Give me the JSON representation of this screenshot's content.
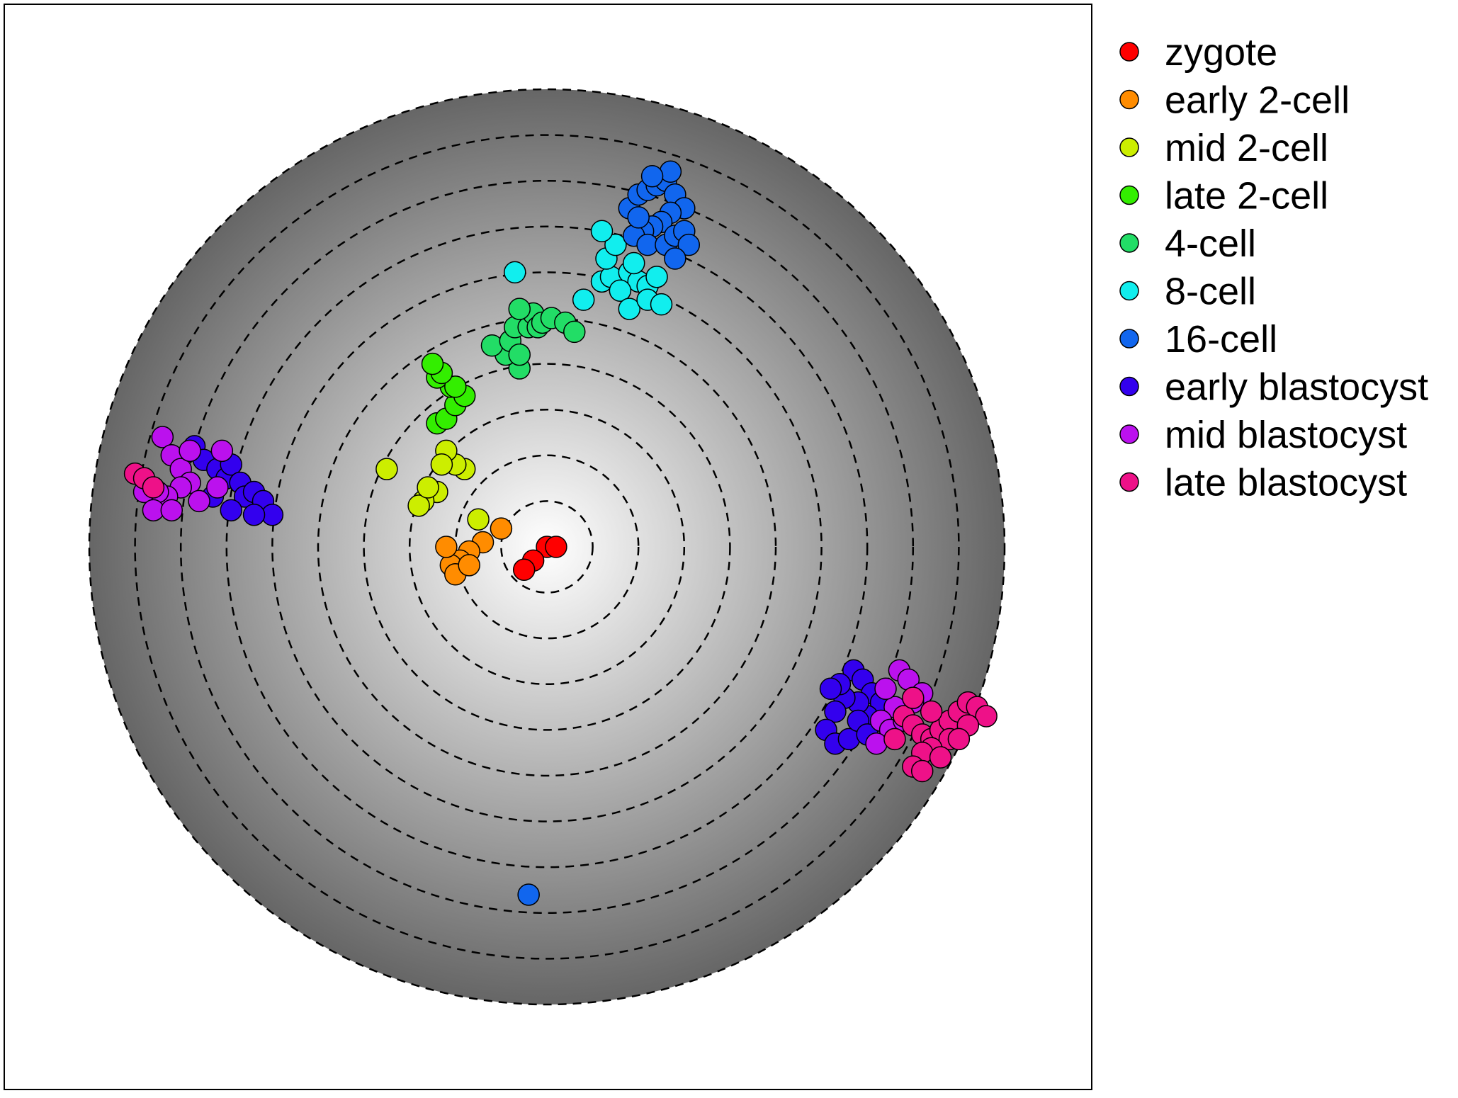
{
  "chart_data": {
    "type": "scatter",
    "title": "",
    "xlabel": "",
    "ylabel": "",
    "xlim": [
      -1,
      1
    ],
    "ylim": [
      -1,
      1
    ],
    "grid": false,
    "background": "radial gradient, white center to dark gray edge, dashed concentric rings",
    "legend_position": "right",
    "series": [
      {
        "name": "zygote",
        "color": "#ff0000",
        "points": [
          [
            0.0,
            0.0
          ],
          [
            -0.03,
            -0.03
          ],
          [
            -0.05,
            -0.05
          ],
          [
            0.02,
            0.0
          ]
        ]
      },
      {
        "name": "early 2-cell",
        "color": "#ff8c00",
        "points": [
          [
            -0.1,
            0.04
          ],
          [
            -0.14,
            0.01
          ],
          [
            -0.17,
            -0.01
          ],
          [
            -0.19,
            -0.03
          ],
          [
            -0.21,
            -0.04
          ],
          [
            -0.2,
            -0.06
          ],
          [
            -0.17,
            -0.04
          ],
          [
            -0.22,
            0.0
          ]
        ]
      },
      {
        "name": "mid 2-cell",
        "color": "#ccee00",
        "points": [
          [
            -0.15,
            0.06
          ],
          [
            -0.18,
            0.17
          ],
          [
            -0.2,
            0.18
          ],
          [
            -0.24,
            0.12
          ],
          [
            -0.27,
            0.1
          ],
          [
            -0.28,
            0.09
          ],
          [
            -0.26,
            0.13
          ],
          [
            -0.22,
            0.21
          ],
          [
            -0.23,
            0.18
          ],
          [
            -0.35,
            0.17
          ]
        ]
      },
      {
        "name": "late 2-cell",
        "color": "#33ee00",
        "points": [
          [
            -0.24,
            0.27
          ],
          [
            -0.22,
            0.28
          ],
          [
            -0.2,
            0.31
          ],
          [
            -0.18,
            0.33
          ],
          [
            -0.21,
            0.35
          ],
          [
            -0.24,
            0.37
          ],
          [
            -0.2,
            0.35
          ],
          [
            -0.23,
            0.38
          ],
          [
            -0.25,
            0.4
          ]
        ]
      },
      {
        "name": "4-cell",
        "color": "#22dd66",
        "points": [
          [
            -0.06,
            0.39
          ],
          [
            -0.09,
            0.42
          ],
          [
            -0.12,
            0.44
          ],
          [
            -0.08,
            0.45
          ],
          [
            -0.07,
            0.48
          ],
          [
            -0.04,
            0.48
          ],
          [
            -0.03,
            0.51
          ],
          [
            -0.02,
            0.48
          ],
          [
            -0.01,
            0.49
          ],
          [
            0.01,
            0.5
          ],
          [
            0.04,
            0.49
          ],
          [
            0.06,
            0.47
          ],
          [
            -0.06,
            0.52
          ],
          [
            -0.06,
            0.42
          ]
        ]
      },
      {
        "name": "8-cell",
        "color": "#11eeee",
        "points": [
          [
            -0.07,
            0.6
          ],
          [
            0.08,
            0.54
          ],
          [
            0.12,
            0.58
          ],
          [
            0.14,
            0.59
          ],
          [
            0.18,
            0.6
          ],
          [
            0.2,
            0.58
          ],
          [
            0.22,
            0.57
          ],
          [
            0.24,
            0.59
          ],
          [
            0.16,
            0.56
          ],
          [
            0.18,
            0.52
          ],
          [
            0.22,
            0.54
          ],
          [
            0.25,
            0.53
          ],
          [
            0.19,
            0.62
          ],
          [
            0.13,
            0.63
          ],
          [
            0.15,
            0.66
          ],
          [
            0.12,
            0.69
          ]
        ]
      },
      {
        "name": "16-cell",
        "color": "#1166ee",
        "points": [
          [
            0.18,
            0.74
          ],
          [
            0.2,
            0.77
          ],
          [
            0.22,
            0.78
          ],
          [
            0.24,
            0.79
          ],
          [
            0.26,
            0.8
          ],
          [
            0.28,
            0.77
          ],
          [
            0.3,
            0.74
          ],
          [
            0.27,
            0.73
          ],
          [
            0.25,
            0.71
          ],
          [
            0.23,
            0.7
          ],
          [
            0.21,
            0.69
          ],
          [
            0.19,
            0.68
          ],
          [
            0.22,
            0.66
          ],
          [
            0.26,
            0.66
          ],
          [
            0.28,
            0.68
          ],
          [
            0.3,
            0.69
          ],
          [
            0.31,
            0.66
          ],
          [
            0.28,
            0.63
          ],
          [
            0.27,
            0.82
          ],
          [
            0.23,
            0.81
          ],
          [
            0.2,
            0.72
          ],
          [
            -0.04,
            -0.76
          ]
        ]
      },
      {
        "name": "early blastocyst",
        "color": "#3300ee",
        "points": [
          [
            -0.77,
            0.22
          ],
          [
            -0.75,
            0.19
          ],
          [
            -0.72,
            0.17
          ],
          [
            -0.7,
            0.15
          ],
          [
            -0.69,
            0.18
          ],
          [
            -0.67,
            0.14
          ],
          [
            -0.66,
            0.11
          ],
          [
            -0.64,
            0.12
          ],
          [
            -0.62,
            0.1
          ],
          [
            -0.6,
            0.07
          ],
          [
            -0.64,
            0.07
          ],
          [
            -0.69,
            0.08
          ],
          [
            -0.73,
            0.11
          ],
          [
            0.67,
            -0.27
          ],
          [
            0.69,
            -0.29
          ],
          [
            0.71,
            -0.32
          ],
          [
            0.73,
            -0.34
          ],
          [
            0.7,
            -0.37
          ],
          [
            0.68,
            -0.34
          ],
          [
            0.65,
            -0.33
          ],
          [
            0.63,
            -0.36
          ],
          [
            0.61,
            -0.4
          ],
          [
            0.63,
            -0.43
          ],
          [
            0.66,
            -0.42
          ],
          [
            0.68,
            -0.38
          ],
          [
            0.7,
            -0.41
          ],
          [
            0.64,
            -0.3
          ],
          [
            0.62,
            -0.31
          ]
        ]
      },
      {
        "name": "mid blastocyst",
        "color": "#bb11ee",
        "points": [
          [
            -0.84,
            0.24
          ],
          [
            -0.82,
            0.2
          ],
          [
            -0.8,
            0.17
          ],
          [
            -0.78,
            0.14
          ],
          [
            -0.8,
            0.13
          ],
          [
            -0.83,
            0.11
          ],
          [
            -0.85,
            0.12
          ],
          [
            -0.88,
            0.12
          ],
          [
            -0.86,
            0.08
          ],
          [
            -0.82,
            0.08
          ],
          [
            -0.76,
            0.1
          ],
          [
            -0.72,
            0.13
          ],
          [
            -0.71,
            0.21
          ],
          [
            -0.78,
            0.21
          ],
          [
            0.77,
            -0.27
          ],
          [
            0.79,
            -0.29
          ],
          [
            0.82,
            -0.32
          ],
          [
            0.8,
            -0.34
          ],
          [
            0.76,
            -0.35
          ],
          [
            0.73,
            -0.38
          ],
          [
            0.75,
            -0.4
          ],
          [
            0.72,
            -0.43
          ],
          [
            0.78,
            -0.38
          ],
          [
            0.74,
            -0.31
          ]
        ]
      },
      {
        "name": "late blastocyst",
        "color": "#ee1188",
        "points": [
          [
            -0.9,
            0.16
          ],
          [
            -0.88,
            0.15
          ],
          [
            -0.86,
            0.13
          ],
          [
            0.78,
            -0.37
          ],
          [
            0.8,
            -0.39
          ],
          [
            0.82,
            -0.41
          ],
          [
            0.84,
            -0.42
          ],
          [
            0.86,
            -0.4
          ],
          [
            0.88,
            -0.38
          ],
          [
            0.9,
            -0.36
          ],
          [
            0.92,
            -0.34
          ],
          [
            0.94,
            -0.35
          ],
          [
            0.96,
            -0.37
          ],
          [
            0.92,
            -0.39
          ],
          [
            0.88,
            -0.42
          ],
          [
            0.84,
            -0.44
          ],
          [
            0.82,
            -0.45
          ],
          [
            0.8,
            -0.48
          ],
          [
            0.82,
            -0.49
          ],
          [
            0.86,
            -0.46
          ],
          [
            0.9,
            -0.42
          ],
          [
            0.76,
            -0.42
          ],
          [
            0.8,
            -0.33
          ],
          [
            0.84,
            -0.36
          ]
        ]
      }
    ]
  }
}
